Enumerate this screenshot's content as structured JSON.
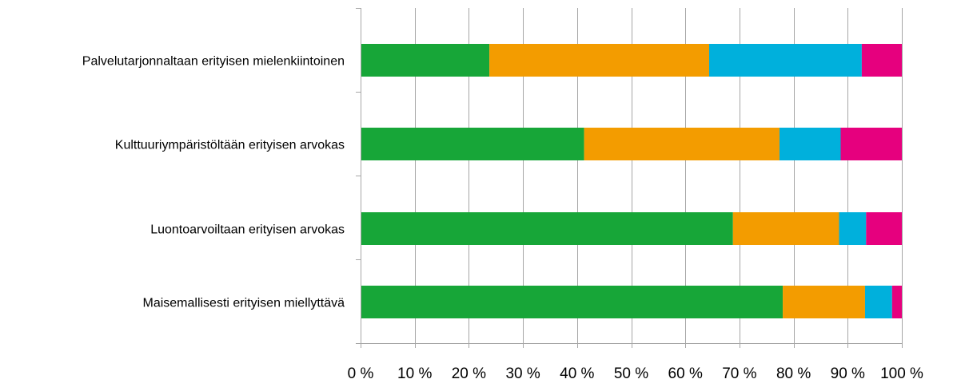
{
  "chart_data": {
    "type": "bar",
    "orientation": "horizontal",
    "stacked": true,
    "percent_stacked": true,
    "categories": [
      "Palvelutarjonnaltaan erityisen mielenkiintoinen",
      "Kulttuuriympäristöltään erityisen arvokas",
      "Luontoarvoiltaan erityisen arvokas",
      "Maisemallisesti erityisen miellyttävä"
    ],
    "series": [
      {
        "color": "#17a638",
        "values": [
          23.8,
          41.3,
          68.8,
          78.0
        ]
      },
      {
        "color": "#f39c00",
        "values": [
          40.6,
          36.1,
          19.6,
          15.2
        ]
      },
      {
        "color": "#00b0dc",
        "values": [
          28.2,
          11.3,
          5.0,
          5.0
        ]
      },
      {
        "color": "#e6007e",
        "values": [
          7.4,
          11.3,
          6.6,
          1.8
        ]
      }
    ],
    "xlim": [
      0,
      100
    ],
    "xticks": [
      "0 %",
      "10 %",
      "20 %",
      "30 %",
      "40 %",
      "50 %",
      "60 %",
      "70 %",
      "80 %",
      "90 %",
      "100 %"
    ],
    "title": "",
    "xlabel": "",
    "ylabel": "",
    "grid": "vertical",
    "legend": "none"
  }
}
